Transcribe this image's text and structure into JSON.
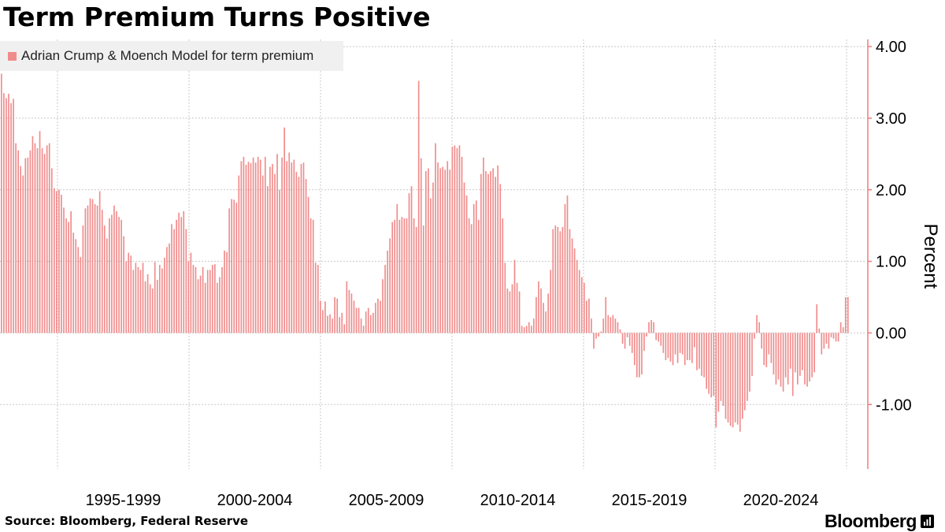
{
  "title": "Term Premium Turns Positive",
  "source": "Source: Bloomberg, Federal Reserve",
  "logo": "Bloomberg",
  "colors": {
    "bar": "#f08c8c",
    "axis": "#f27b7b",
    "grid": "#c8c8c8",
    "legend_bg": "#f0f0f0"
  },
  "chart_data": {
    "type": "bar",
    "series": [
      {
        "name": "Adrian Crump & Moench Model for term premium",
        "values": [
          3.62,
          3.35,
          3.28,
          3.34,
          3.21,
          3.27,
          2.65,
          2.55,
          2.33,
          2.2,
          2.44,
          2.45,
          2.55,
          2.75,
          2.65,
          2.58,
          2.82,
          2.58,
          2.5,
          2.62,
          2.65,
          2.3,
          2.02,
          1.98,
          2.0,
          1.93,
          1.75,
          1.6,
          1.55,
          1.7,
          1.4,
          1.31,
          1.2,
          1.06,
          1.5,
          1.74,
          1.78,
          1.88,
          1.87,
          1.8,
          1.78,
          1.98,
          1.72,
          1.5,
          1.32,
          1.6,
          1.65,
          1.78,
          1.7,
          1.62,
          1.58,
          1.35,
          1.0,
          1.12,
          1.08,
          0.88,
          0.98,
          0.92,
          0.88,
          0.98,
          0.72,
          0.82,
          0.68,
          0.62,
          0.99,
          0.74,
          0.95,
          0.9,
          1.05,
          1.2,
          1.25,
          1.52,
          1.45,
          1.58,
          1.68,
          1.62,
          1.7,
          1.45,
          1.0,
          1.12,
          0.95,
          0.92,
          0.75,
          0.8,
          0.92,
          0.7,
          0.88,
          0.88,
          0.95,
          0.96,
          0.7,
          0.78,
          0.92,
          1.15,
          1.13,
          1.74,
          1.87,
          1.86,
          1.82,
          2.2,
          2.4,
          2.46,
          2.35,
          2.39,
          2.37,
          2.45,
          2.38,
          2.46,
          2.42,
          2.2,
          2.46,
          2.05,
          2.32,
          2.36,
          2.22,
          2.5,
          2.0,
          2.45,
          2.87,
          2.4,
          2.52,
          2.38,
          2.42,
          2.25,
          2.18,
          2.36,
          2.38,
          2.15,
          1.9,
          1.6,
          1.58,
          0.98,
          0.95,
          0.45,
          0.32,
          0.44,
          0.24,
          0.26,
          0.2,
          0.5,
          0.48,
          0.22,
          0.28,
          0.12,
          0.72,
          0.6,
          0.55,
          0.45,
          0.35,
          0.35,
          0.2,
          0.1,
          0.3,
          0.35,
          0.25,
          0.28,
          0.42,
          0.48,
          0.45,
          0.75,
          0.95,
          1.15,
          1.32,
          1.55,
          1.58,
          1.8,
          1.58,
          1.62,
          1.6,
          1.6,
          1.95,
          2.05,
          1.6,
          1.48,
          3.52,
          2.44,
          1.5,
          2.26,
          2.3,
          1.88,
          2.1,
          2.65,
          2.38,
          2.3,
          2.32,
          2.28,
          2.4,
          2.28,
          2.6,
          2.62,
          2.58,
          2.62,
          2.46,
          2.1,
          1.92,
          1.6,
          1.52,
          1.8,
          1.85,
          1.58,
          2.22,
          2.45,
          2.26,
          2.22,
          2.26,
          2.3,
          2.18,
          2.34,
          2.08,
          1.6,
          0.98,
          0.62,
          0.58,
          0.68,
          1.02,
          0.7,
          0.58,
          0.1,
          0.08,
          0.1,
          0.15,
          0.1,
          0.2,
          0.5,
          0.72,
          0.62,
          0.42,
          0.3,
          0.55,
          0.88,
          1.45,
          1.5,
          1.48,
          1.42,
          1.48,
          1.8,
          1.92,
          1.45,
          1.32,
          1.18,
          1.02,
          0.88,
          0.78,
          0.7,
          0.45,
          0.48,
          0.2,
          -0.22,
          -0.08,
          -0.05,
          0.02,
          0.2,
          0.5,
          0.25,
          0.22,
          0.25,
          0.2,
          0.15,
          0.05,
          -0.15,
          -0.22,
          -0.06,
          -0.18,
          -0.28,
          -0.45,
          -0.62,
          -0.62,
          -0.58,
          -0.25,
          -0.05,
          0.15,
          0.18,
          0.15,
          -0.1,
          -0.12,
          -0.18,
          -0.28,
          -0.38,
          -0.35,
          -0.4,
          -0.45,
          -0.3,
          -0.42,
          -0.28,
          -0.3,
          -0.45,
          -0.38,
          -0.38,
          -0.42,
          -0.2,
          -0.52,
          -0.5,
          -0.6,
          -0.62,
          -0.78,
          -0.85,
          -0.9,
          -0.88,
          -1.32,
          -1.1,
          -0.95,
          -1.02,
          -1.2,
          -1.25,
          -1.3,
          -1.32,
          -1.25,
          -1.28,
          -1.38,
          -1.2,
          -1.08,
          -0.95,
          -0.82,
          -0.6,
          -0.08,
          0.25,
          0.15,
          -0.22,
          -0.45,
          -0.48,
          -0.3,
          -0.42,
          -0.58,
          -0.72,
          -0.65,
          -0.75,
          -0.82,
          -0.62,
          -0.72,
          -0.5,
          -0.88,
          -0.55,
          -0.72,
          -0.6,
          -0.52,
          -0.72,
          -0.75,
          -0.68,
          -0.62,
          -0.55,
          0.4,
          0.06,
          -0.3,
          -0.22,
          -0.15,
          -0.22,
          -0.06,
          -0.08,
          -0.12,
          -0.12,
          0.15,
          0.08,
          0.5,
          0.5
        ]
      }
    ],
    "x_tick_labels": [
      "1995-1999",
      "2000-2004",
      "2005-2009",
      "2010-2014",
      "2015-2019",
      "2020-2024"
    ],
    "y_tick_labels": [
      "4.00",
      "3.00",
      "2.00",
      "1.00",
      "0.00",
      "-1.00"
    ],
    "y_ticks": [
      4,
      3,
      2,
      1,
      0,
      -1
    ],
    "ylim": [
      -1.9,
      4.1
    ],
    "ylabel": "Percent",
    "legend_position": "top-left",
    "grid": true
  }
}
